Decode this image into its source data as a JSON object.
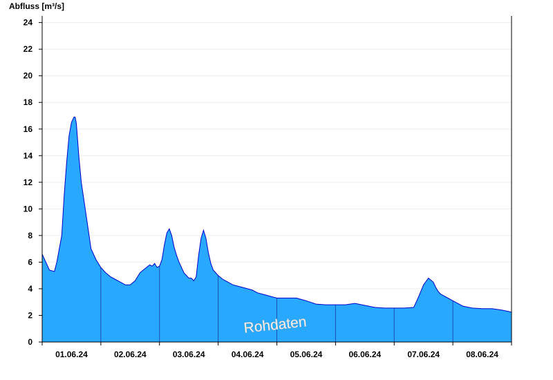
{
  "chart_data": {
    "type": "area",
    "ylabel": "Abfluss [m³/s]",
    "ylim": [
      0,
      24.5
    ],
    "yticks": [
      0,
      2,
      4,
      6,
      8,
      10,
      12,
      14,
      16,
      18,
      20,
      22,
      24
    ],
    "xlim_hours": [
      -12,
      180
    ],
    "date_labels": [
      "01.06.24",
      "02.06.24",
      "03.06.24",
      "04.06.24",
      "05.06.24",
      "06.06.24",
      "07.06.24",
      "08.06.24"
    ],
    "watermark": "Rohdaten",
    "grid": true,
    "fill_color": "#29a8ff",
    "line_color": "#0000cc",
    "series": [
      {
        "hours": [
          -12,
          -9,
          -7,
          -6,
          -4,
          -3,
          -2,
          -1,
          0,
          1,
          1.5,
          2,
          3,
          4,
          6,
          8,
          10,
          12,
          14,
          16,
          18,
          20,
          22,
          24,
          26,
          28,
          30,
          32,
          33,
          34,
          35,
          36,
          37,
          38,
          39,
          40,
          41,
          42,
          43,
          44,
          46,
          48,
          49,
          50,
          51,
          52,
          53,
          54,
          55,
          56,
          57,
          58,
          60,
          62,
          64,
          66,
          68,
          72,
          74,
          76,
          78,
          82,
          84,
          86,
          88,
          92,
          94,
          96,
          100,
          104,
          108,
          112,
          116,
          120,
          124,
          128,
          132,
          136,
          140,
          142,
          144,
          146,
          148,
          149,
          150,
          151,
          152,
          153,
          154,
          156,
          158,
          160,
          164,
          168,
          172,
          176,
          180
        ],
        "values": [
          6.6,
          5.4,
          5.3,
          6.0,
          8.0,
          11.0,
          13.5,
          15.5,
          16.5,
          16.9,
          16.9,
          16.4,
          14.0,
          12.0,
          9.5,
          7.0,
          6.2,
          5.6,
          5.2,
          4.9,
          4.7,
          4.5,
          4.3,
          4.3,
          4.6,
          5.2,
          5.5,
          5.8,
          5.7,
          5.9,
          5.6,
          5.7,
          6.2,
          7.3,
          8.2,
          8.5,
          8.0,
          7.1,
          6.5,
          6.0,
          5.2,
          4.8,
          4.8,
          4.6,
          4.9,
          6.5,
          7.8,
          8.4,
          7.8,
          6.7,
          5.9,
          5.4,
          5.0,
          4.7,
          4.5,
          4.3,
          4.2,
          4.0,
          3.9,
          3.7,
          3.6,
          3.4,
          3.3,
          3.3,
          3.3,
          3.3,
          3.2,
          3.1,
          2.85,
          2.8,
          2.8,
          2.8,
          2.9,
          2.75,
          2.6,
          2.55,
          2.55,
          2.55,
          2.6,
          3.4,
          4.3,
          4.8,
          4.5,
          4.1,
          3.8,
          3.6,
          3.5,
          3.4,
          3.3,
          3.1,
          2.9,
          2.7,
          2.55,
          2.5,
          2.5,
          2.4,
          2.25
        ]
      }
    ]
  }
}
